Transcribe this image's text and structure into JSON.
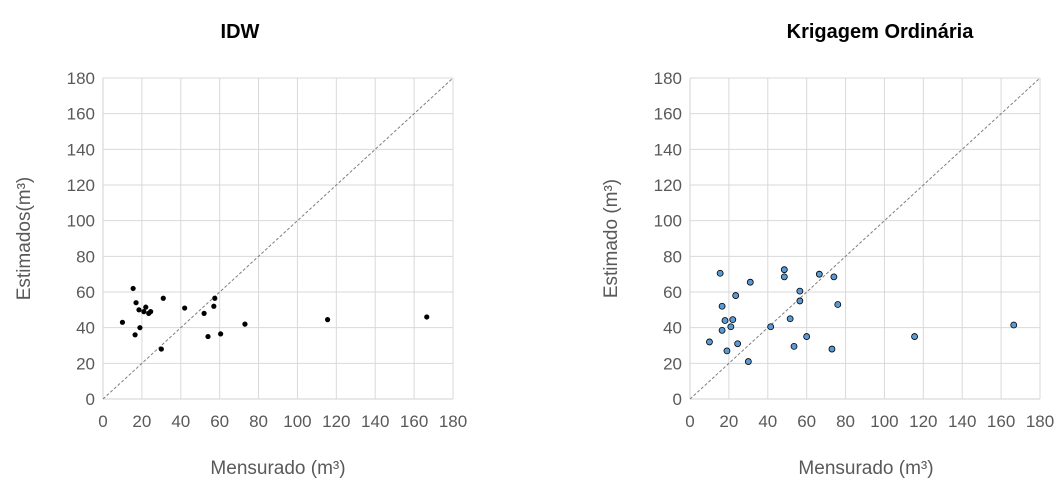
{
  "chart_data": [
    {
      "type": "scatter",
      "title": "IDW",
      "xlabel": "Mensurado (m³)",
      "ylabel": "Estimados(m³)",
      "xlim": [
        0,
        180
      ],
      "ylim": [
        0,
        180
      ],
      "xticks": [
        "0",
        "20",
        "40",
        "60",
        "80",
        "100",
        "120",
        "140",
        "160",
        "180"
      ],
      "yticks": [
        "0",
        "20",
        "40",
        "60",
        "80",
        "100",
        "120",
        "140",
        "160",
        "180"
      ],
      "grid": true,
      "reference_line": "1:1",
      "marker_color": "#000000",
      "points": [
        {
          "x": 10,
          "y": 43
        },
        {
          "x": 15.5,
          "y": 62
        },
        {
          "x": 16.5,
          "y": 36
        },
        {
          "x": 17,
          "y": 54
        },
        {
          "x": 18.5,
          "y": 50
        },
        {
          "x": 19,
          "y": 40
        },
        {
          "x": 21,
          "y": 49
        },
        {
          "x": 22,
          "y": 51.5
        },
        {
          "x": 23.5,
          "y": 48
        },
        {
          "x": 24.5,
          "y": 49
        },
        {
          "x": 30,
          "y": 28
        },
        {
          "x": 31,
          "y": 56.5
        },
        {
          "x": 42,
          "y": 51
        },
        {
          "x": 52,
          "y": 48
        },
        {
          "x": 54,
          "y": 35
        },
        {
          "x": 57,
          "y": 52
        },
        {
          "x": 57.5,
          "y": 56.5
        },
        {
          "x": 60.5,
          "y": 36.5
        },
        {
          "x": 73,
          "y": 42
        },
        {
          "x": 115.5,
          "y": 44.5
        },
        {
          "x": 166.5,
          "y": 46
        }
      ]
    },
    {
      "type": "scatter",
      "title": "Krigagem Ordinária",
      "xlabel": "Mensurado (m³)",
      "ylabel": "Estimado (m³)",
      "xlim": [
        0,
        180
      ],
      "ylim": [
        0,
        180
      ],
      "xticks": [
        "0",
        "20",
        "40",
        "60",
        "80",
        "100",
        "120",
        "140",
        "160",
        "180"
      ],
      "yticks": [
        "0",
        "20",
        "40",
        "60",
        "80",
        "100",
        "120",
        "140",
        "160",
        "180"
      ],
      "grid": true,
      "reference_line": "1:1",
      "marker_color": "#5b9bd5",
      "points": [
        {
          "x": 10,
          "y": 32
        },
        {
          "x": 15.5,
          "y": 70.5
        },
        {
          "x": 16.5,
          "y": 52
        },
        {
          "x": 16.5,
          "y": 38.5
        },
        {
          "x": 18,
          "y": 44
        },
        {
          "x": 19,
          "y": 27
        },
        {
          "x": 21,
          "y": 40.5
        },
        {
          "x": 22,
          "y": 44.5
        },
        {
          "x": 23.5,
          "y": 58
        },
        {
          "x": 24.5,
          "y": 31
        },
        {
          "x": 30,
          "y": 21
        },
        {
          "x": 31,
          "y": 65.5
        },
        {
          "x": 41.5,
          "y": 40.5
        },
        {
          "x": 48.5,
          "y": 72.5
        },
        {
          "x": 48.5,
          "y": 68.5
        },
        {
          "x": 51.5,
          "y": 45
        },
        {
          "x": 53.5,
          "y": 29.5
        },
        {
          "x": 56.5,
          "y": 60.5
        },
        {
          "x": 56.5,
          "y": 55
        },
        {
          "x": 60,
          "y": 35
        },
        {
          "x": 66.5,
          "y": 70
        },
        {
          "x": 73,
          "y": 28
        },
        {
          "x": 74,
          "y": 68.5
        },
        {
          "x": 76,
          "y": 53
        },
        {
          "x": 115.5,
          "y": 35
        },
        {
          "x": 166.5,
          "y": 41.5
        }
      ]
    }
  ]
}
